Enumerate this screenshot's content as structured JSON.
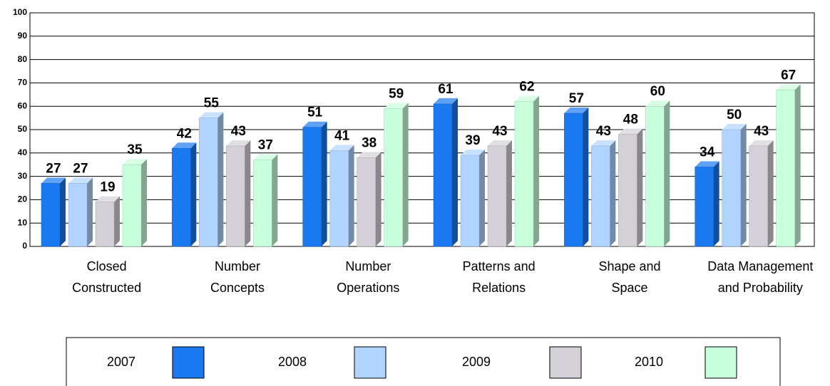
{
  "chart_data": {
    "type": "bar",
    "categories": [
      [
        "Closed",
        "Constructed"
      ],
      [
        "Number",
        "Concepts"
      ],
      [
        "Number",
        "Operations"
      ],
      [
        "Patterns and",
        "Relations"
      ],
      [
        "Shape and",
        "Space"
      ],
      [
        "Data Management",
        "and Probability"
      ]
    ],
    "series": [
      {
        "name": "2007",
        "color": "#1a78f0",
        "values": [
          27,
          42,
          51,
          61,
          57,
          34
        ]
      },
      {
        "name": "2008",
        "color": "#b0d4ff",
        "values": [
          27,
          55,
          41,
          39,
          43,
          50
        ]
      },
      {
        "name": "2009",
        "color": "#d4d0d8",
        "values": [
          19,
          43,
          38,
          43,
          48,
          43
        ]
      },
      {
        "name": "2010",
        "color": "#c8ffdc",
        "values": [
          35,
          37,
          59,
          62,
          60,
          67
        ]
      }
    ],
    "ylim": [
      0,
      100
    ],
    "yticks": [
      0,
      10,
      20,
      30,
      40,
      50,
      60,
      70,
      80,
      90,
      100
    ],
    "grid": true
  }
}
